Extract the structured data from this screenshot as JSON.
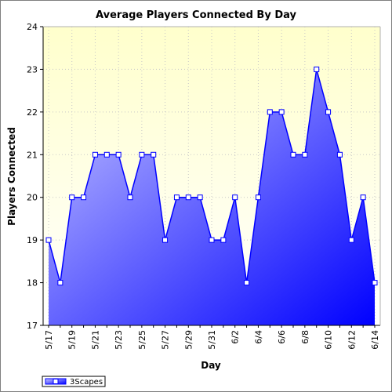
{
  "chart_data": {
    "type": "area",
    "title": "Average Players Connected By Day",
    "xlabel": "Day",
    "ylabel": "Players Connected",
    "ylim": [
      17,
      24
    ],
    "yticks": [
      "17",
      "18",
      "19",
      "20",
      "21",
      "22",
      "23",
      "24"
    ],
    "x": [
      "5/17",
      "5/18",
      "5/19",
      "5/20",
      "5/21",
      "5/22",
      "5/23",
      "5/24",
      "5/25",
      "5/26",
      "5/27",
      "5/28",
      "5/29",
      "5/30",
      "5/31",
      "6/1",
      "6/2",
      "6/3",
      "6/4",
      "6/5",
      "6/6",
      "6/7",
      "6/8",
      "6/9",
      "6/10",
      "6/11",
      "6/12",
      "6/13",
      "6/14"
    ],
    "xtick_labels": [
      "5/17",
      "5/19",
      "5/21",
      "5/23",
      "5/25",
      "5/27",
      "5/29",
      "5/31",
      "6/2",
      "6/4",
      "6/6",
      "6/8",
      "6/10",
      "6/12",
      "6/14"
    ],
    "series": [
      {
        "name": "3Scapes",
        "values": [
          19,
          18,
          20,
          20,
          21,
          21,
          21,
          20,
          21,
          21,
          19,
          20,
          20,
          20,
          19,
          19,
          20,
          18,
          20,
          22,
          22,
          21,
          21,
          23,
          22,
          21,
          19,
          20,
          18
        ]
      }
    ],
    "grid": true,
    "legend": "bottom-left",
    "colors": {
      "plot_bg_top": "#ffffcc",
      "plot_bg_bottom": "#ffffff",
      "fill_light": "#c8c8ff",
      "fill_dark": "#0000ff",
      "line": "#0000ff",
      "marker_fill": "#ffffff",
      "grid": "#c8c8c8"
    }
  }
}
